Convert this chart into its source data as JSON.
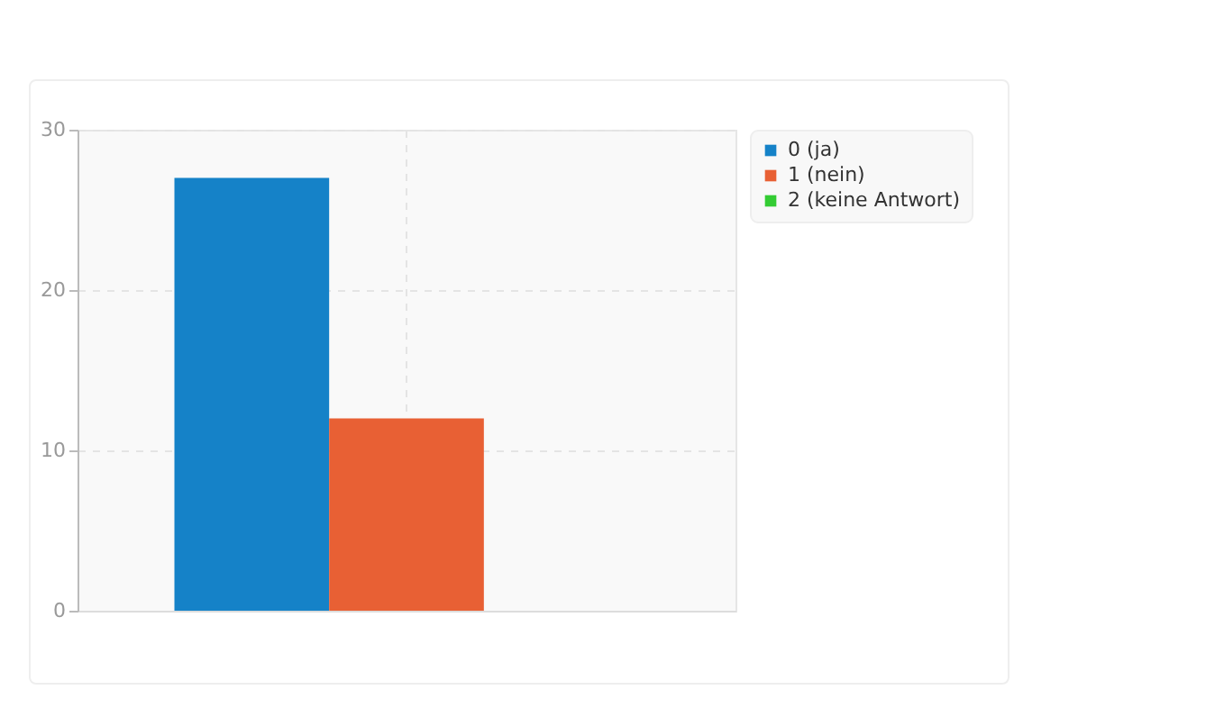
{
  "chart_data": {
    "type": "bar",
    "categories": [
      null
    ],
    "series": [
      {
        "name": "0 (ja)",
        "color": "#1582c8",
        "values": [
          27
        ]
      },
      {
        "name": "1 (nein)",
        "color": "#e86034",
        "values": [
          12
        ]
      },
      {
        "name": "2 (keine Antwort)",
        "color": "#33cc33",
        "values": [
          0
        ]
      }
    ],
    "ylim": [
      0,
      30
    ],
    "yticks": [
      0,
      10,
      20,
      30
    ],
    "grid": true,
    "legend": "top right"
  }
}
